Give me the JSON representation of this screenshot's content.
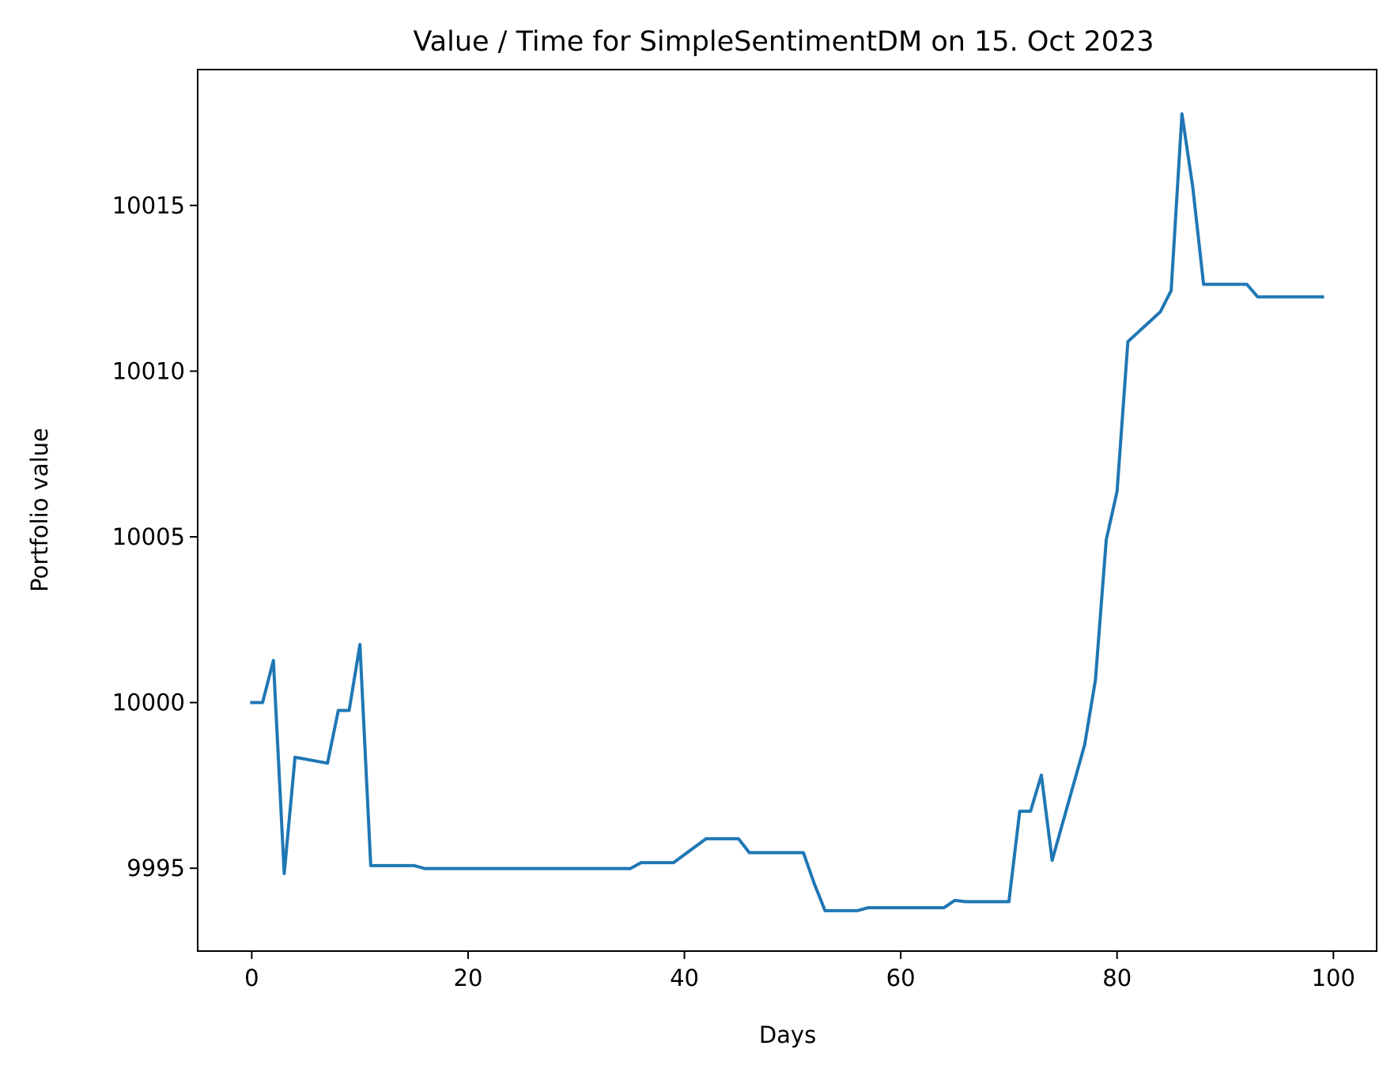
{
  "chart_data": {
    "type": "line",
    "title": "Value / Time for SimpleSentimentDM on 15. Oct 2023",
    "xlabel": "Days",
    "ylabel": "Portfolio value",
    "xlim": [
      -5,
      104
    ],
    "ylim": [
      9992.5,
      10019.1
    ],
    "xticks": [
      0,
      20,
      40,
      60,
      80,
      100
    ],
    "yticks": [
      9995,
      10000,
      10005,
      10010,
      10015
    ],
    "grid": false,
    "line_color": "#1f77b4",
    "series": [
      {
        "x": [
          0,
          1,
          2,
          3,
          4,
          5,
          6,
          7,
          8,
          9,
          10,
          11,
          12,
          13,
          14,
          15,
          16,
          17,
          18,
          19,
          20,
          21,
          22,
          23,
          24,
          25,
          26,
          27,
          28,
          29,
          30,
          31,
          32,
          33,
          34,
          35,
          36,
          37,
          38,
          39,
          40,
          41,
          42,
          43,
          44,
          45,
          46,
          47,
          48,
          49,
          50,
          51,
          52,
          53,
          54,
          55,
          56,
          57,
          58,
          59,
          60,
          61,
          62,
          63,
          64,
          65,
          66,
          67,
          68,
          69,
          70,
          71,
          72,
          73,
          74,
          75,
          76,
          77,
          78,
          79,
          80,
          81,
          82,
          83,
          84,
          85,
          86,
          87,
          88,
          89,
          90,
          91,
          92,
          93,
          94,
          95,
          96,
          97,
          98,
          99
        ],
        "values": [
          10000.0,
          10000.0,
          10001.27,
          9994.84,
          9998.35,
          9998.29,
          9998.23,
          9998.17,
          9999.76,
          9999.76,
          10001.75,
          9995.08,
          9995.08,
          9995.08,
          9995.08,
          9995.08,
          9994.99,
          9994.99,
          9994.99,
          9994.99,
          9994.99,
          9994.99,
          9994.99,
          9994.99,
          9994.99,
          9994.99,
          9994.99,
          9994.99,
          9994.99,
          9994.99,
          9994.99,
          9994.99,
          9994.99,
          9994.99,
          9994.99,
          9994.99,
          9995.17,
          9995.17,
          9995.17,
          9995.17,
          9995.41,
          9995.65,
          9995.89,
          9995.89,
          9995.89,
          9995.89,
          9995.47,
          9995.47,
          9995.47,
          9995.47,
          9995.47,
          9995.47,
          9994.54,
          9993.72,
          9993.72,
          9993.72,
          9993.72,
          9993.81,
          9993.81,
          9993.81,
          9993.81,
          9993.81,
          9993.81,
          9993.81,
          9993.81,
          9994.03,
          9993.99,
          9993.99,
          9993.99,
          9993.99,
          9993.99,
          9996.72,
          9996.72,
          9997.81,
          9995.24,
          9996.4,
          9997.56,
          9998.72,
          10000.68,
          10004.91,
          10006.37,
          10010.89,
          10011.19,
          10011.49,
          10011.79,
          10012.43,
          10017.76,
          10015.55,
          10012.62,
          10012.62,
          10012.62,
          10012.62,
          10012.62,
          10012.24,
          10012.24,
          10012.24,
          10012.24,
          10012.24,
          10012.24,
          10012.24
        ]
      }
    ]
  }
}
